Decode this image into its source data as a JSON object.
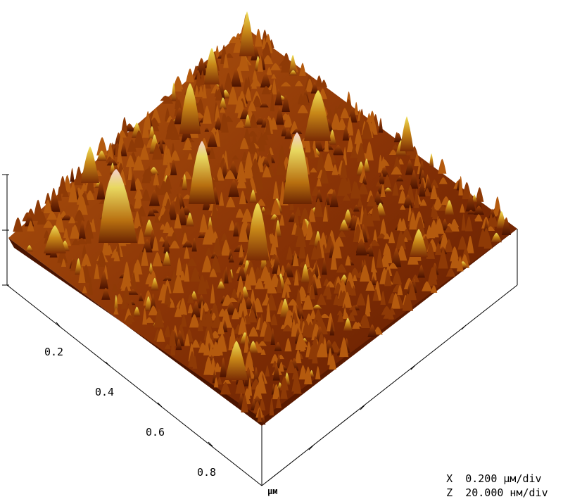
{
  "image": {
    "subject": "AFM 3D surface topography",
    "colors": {
      "deep": "#5a1a00",
      "mid": "#a84a08",
      "high": "#d8a020",
      "peak": "#e8e050",
      "tip": "#f0c8c8",
      "axis": "#000000",
      "background": "#ffffff"
    }
  },
  "axes": {
    "depth_ticks": [
      "0.2",
      "0.4",
      "0.6",
      "0.8"
    ],
    "unit": "μм"
  },
  "scale": {
    "x": {
      "axis": "X",
      "value": "0.200 μм/div"
    },
    "z": {
      "axis": "Z",
      "value": "20.000 нм/div"
    }
  }
}
